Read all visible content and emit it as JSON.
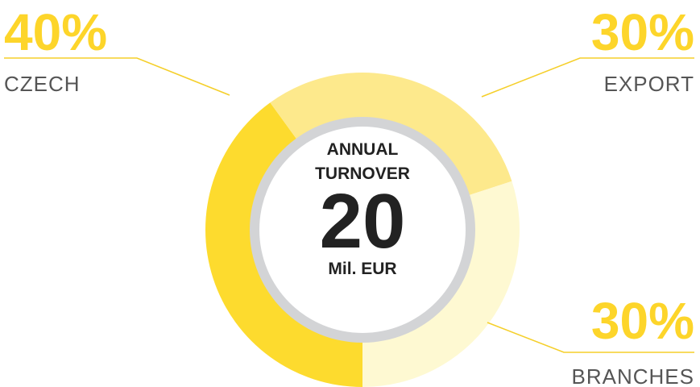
{
  "chart_data": {
    "type": "pie",
    "categories": [
      "CZECH",
      "EXPORT",
      "BRANCHES"
    ],
    "values": [
      40,
      30,
      30
    ],
    "value_labels": [
      "40%",
      "30%",
      "30%"
    ],
    "colors": [
      "#fddb2e",
      "#fde98c",
      "#fef9d2"
    ],
    "center_lines": [
      "ANNUAL",
      "TURNOVER"
    ],
    "total": 20,
    "total_unit": "Mil. EUR"
  }
}
